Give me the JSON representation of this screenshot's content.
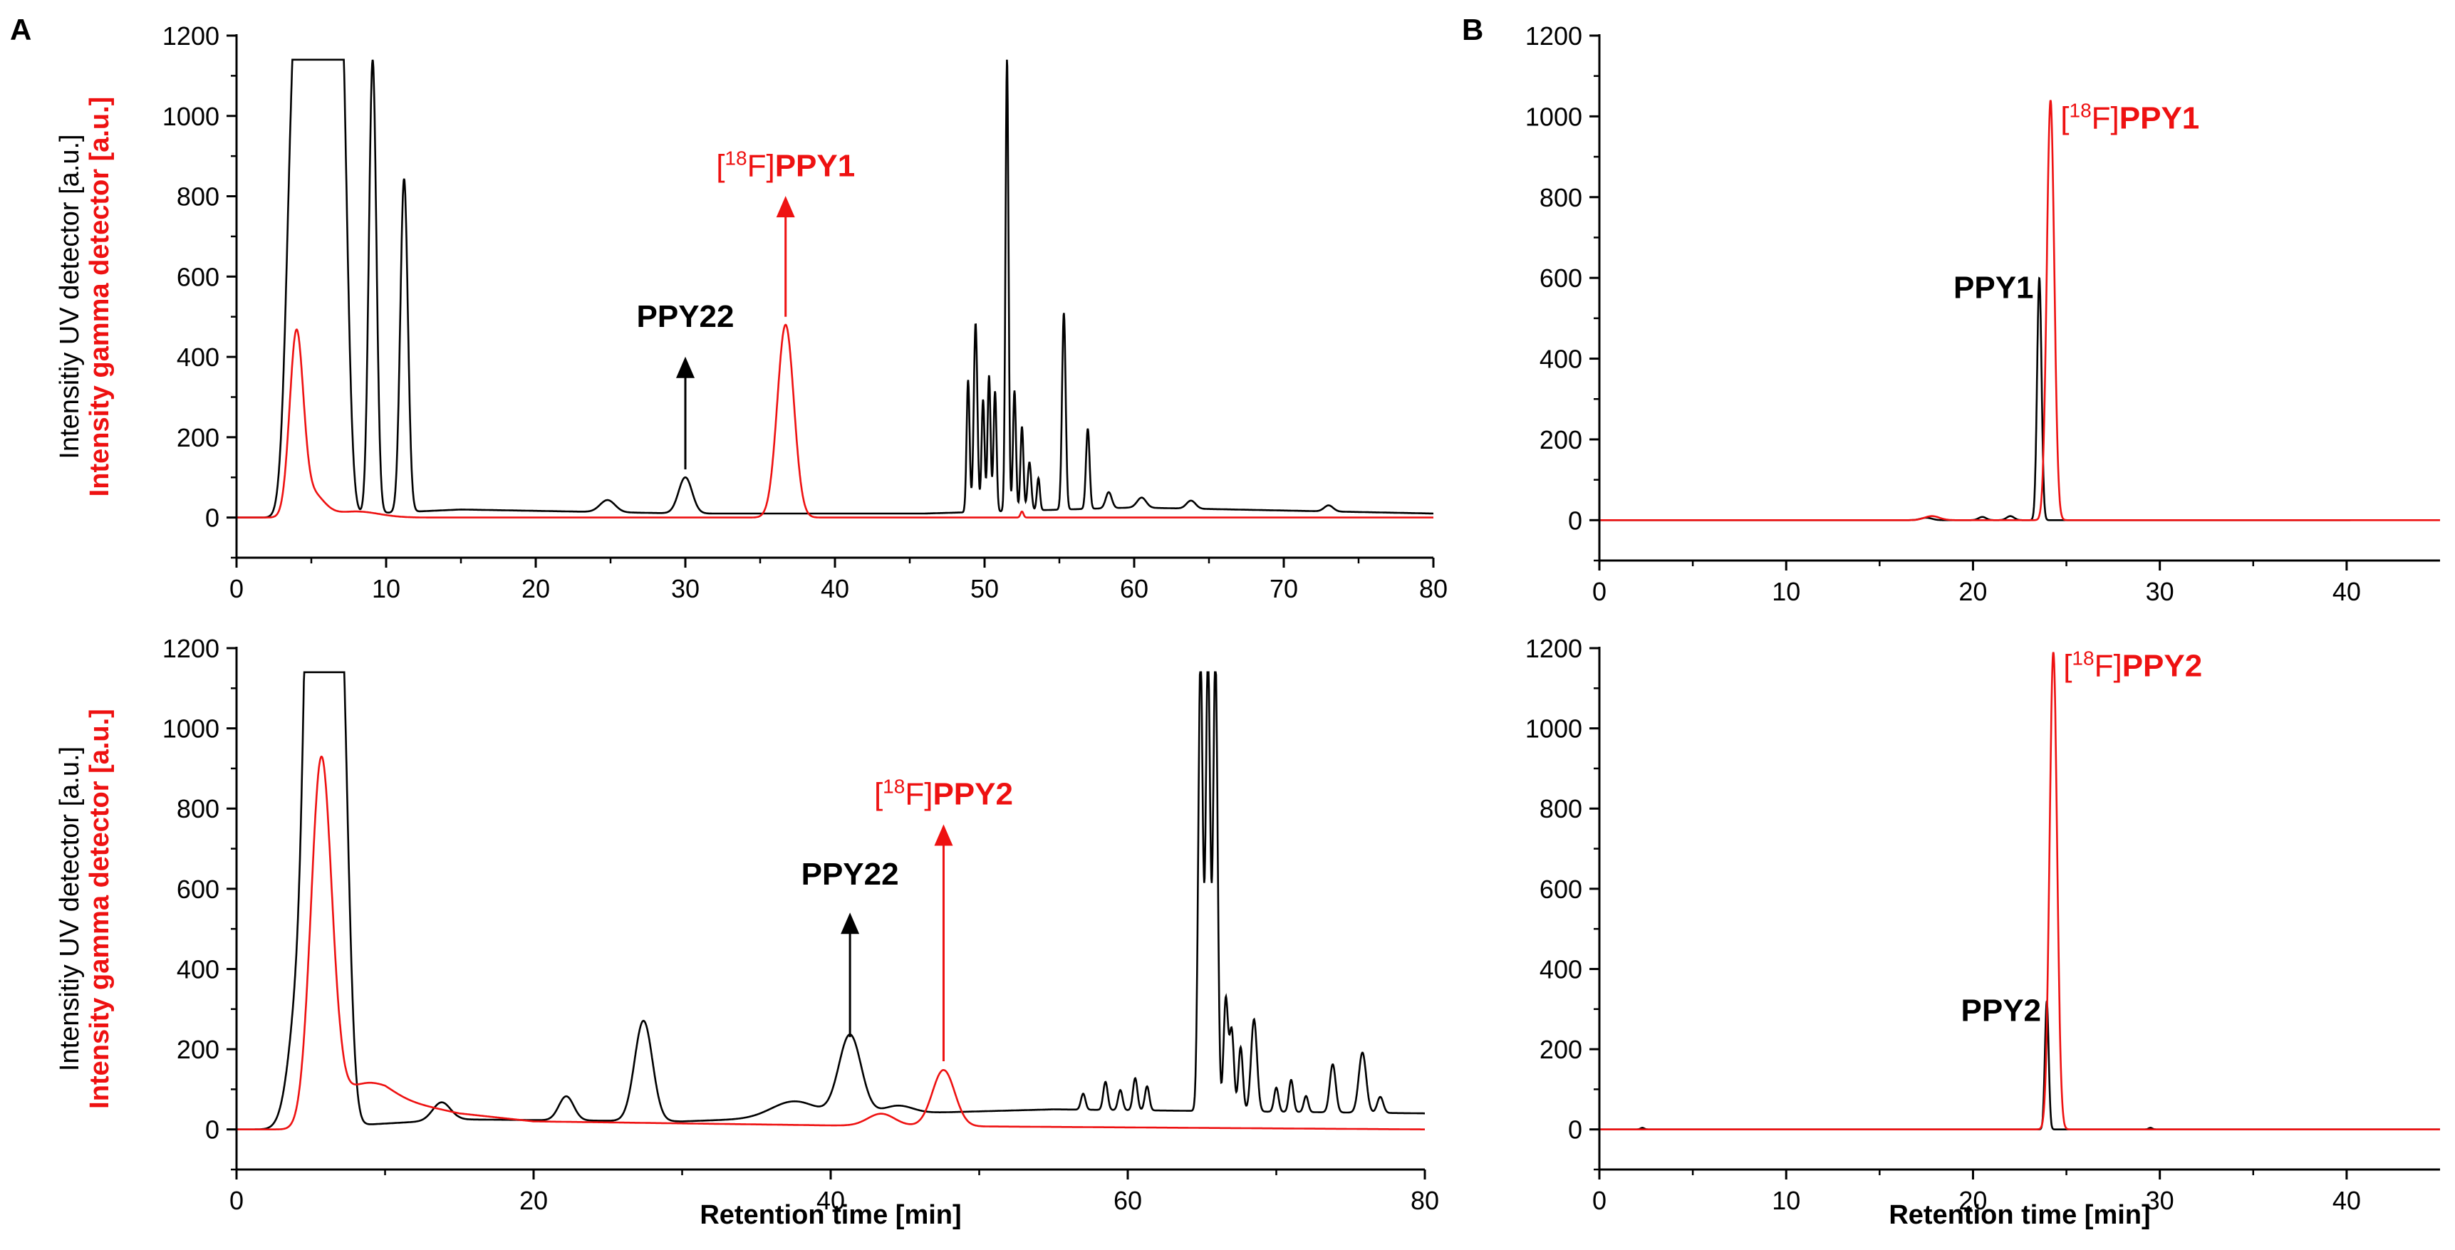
{
  "figure": {
    "panel_a": "A",
    "panel_b": "B"
  },
  "colors": {
    "uv": "#000000",
    "gamma": "#ee1111"
  },
  "chart_data": [
    {
      "id": "A1",
      "type": "line",
      "xlim": [
        0,
        80
      ],
      "ylim": [
        -100,
        1200
      ],
      "xticks": [
        0,
        10,
        20,
        30,
        40,
        50,
        60,
        70,
        80
      ],
      "yticks": [
        0,
        200,
        400,
        600,
        800,
        1000,
        1200
      ],
      "xlabel": "",
      "ylabel_uv": "Intensitiy UV detector [a.u.]",
      "ylabel_gamma": "Intensity gamma  detector [a.u.]",
      "series": [
        {
          "name": "UV detector",
          "color": "#000000",
          "baseline": [
            [
              0,
              0
            ],
            [
              3,
              0
            ],
            [
              15,
              20
            ],
            [
              30,
              10
            ],
            [
              46,
              10
            ],
            [
              60,
              25
            ],
            [
              80,
              10
            ]
          ],
          "peaks": [
            [
              3.9,
              1140,
              0.5
            ],
            [
              4.7,
              1140,
              0.4
            ],
            [
              5.5,
              1140,
              0.35
            ],
            [
              6.3,
              1140,
              0.4
            ],
            [
              7,
              1140,
              0.4
            ],
            [
              9.1,
              1130,
              0.25
            ],
            [
              11.2,
              830,
              0.25
            ],
            [
              24.8,
              30,
              0.5
            ],
            [
              30,
              90,
              0.45
            ],
            [
              48.9,
              330,
              0.1
            ],
            [
              49.4,
              470,
              0.12
            ],
            [
              49.9,
              280,
              0.1
            ],
            [
              50.3,
              340,
              0.1
            ],
            [
              50.7,
              300,
              0.1
            ],
            [
              51.5,
              1130,
              0.1
            ],
            [
              52,
              300,
              0.1
            ],
            [
              52.5,
              210,
              0.1
            ],
            [
              53,
              120,
              0.12
            ],
            [
              53.6,
              80,
              0.1
            ],
            [
              55.3,
              490,
              0.12
            ],
            [
              56.9,
              200,
              0.12
            ],
            [
              58.3,
              40,
              0.2
            ],
            [
              60.5,
              25,
              0.3
            ],
            [
              63.8,
              20,
              0.3
            ],
            [
              73,
              15,
              0.3
            ]
          ]
        },
        {
          "name": "gamma detector",
          "color": "#ee1111",
          "baseline": [
            [
              0,
              0
            ],
            [
              80,
              0
            ]
          ],
          "peaks": [
            [
              4,
              440,
              0.45
            ],
            [
              5,
              60,
              0.8
            ],
            [
              8,
              15,
              1.5
            ],
            [
              36.7,
              480,
              0.55
            ],
            [
              52.5,
              15,
              0.1
            ]
          ]
        }
      ],
      "annotations": [
        {
          "label": "PPY22",
          "color": "#000000",
          "x": 30,
          "arrow_from": 120,
          "arrow_to": 390,
          "text_at": 475
        },
        {
          "label_pre": "[",
          "label_sup": "18",
          "label_mid": "F]",
          "label_bold": "PPY1",
          "color": "#ee1111",
          "x": 36.7,
          "arrow_from": 500,
          "arrow_to": 790,
          "text_at": 850
        }
      ]
    },
    {
      "id": "A2",
      "type": "line",
      "xlim": [
        0,
        80
      ],
      "ylim": [
        -100,
        1200
      ],
      "xticks": [
        0,
        20,
        40,
        60,
        80
      ],
      "yticks": [
        0,
        200,
        400,
        600,
        800,
        1000,
        1200
      ],
      "xlabel": "Retention time [min]",
      "ylabel_uv": "Intensitiy UV detector [a.u.]",
      "ylabel_gamma": "Intensity gamma  detector [a.u.]",
      "series": [
        {
          "name": "UV detector",
          "color": "#000000",
          "baseline": [
            [
              0,
              0
            ],
            [
              3,
              0
            ],
            [
              15,
              25
            ],
            [
              30,
              20
            ],
            [
              45,
              40
            ],
            [
              55,
              50
            ],
            [
              80,
              40
            ]
          ],
          "peaks": [
            [
              4.6,
              480,
              0.8
            ],
            [
              5,
              1140,
              0.4
            ],
            [
              6,
              1140,
              0.6
            ],
            [
              7,
              1140,
              0.5
            ],
            [
              13.8,
              45,
              0.6
            ],
            [
              22.2,
              60,
              0.5
            ],
            [
              27.4,
              250,
              0.6
            ],
            [
              37.5,
              40,
              1.5
            ],
            [
              41.3,
              200,
              0.75
            ],
            [
              44.5,
              20,
              1
            ],
            [
              57,
              40,
              0.15
            ],
            [
              58.5,
              70,
              0.15
            ],
            [
              59.5,
              50,
              0.15
            ],
            [
              60.5,
              80,
              0.15
            ],
            [
              61.3,
              60,
              0.15
            ],
            [
              64.9,
              1140,
              0.15
            ],
            [
              65.4,
              1140,
              0.15
            ],
            [
              65.9,
              1140,
              0.15
            ],
            [
              66.6,
              280,
              0.15
            ],
            [
              67,
              200,
              0.15
            ],
            [
              67.6,
              160,
              0.15
            ],
            [
              68.5,
              230,
              0.2
            ],
            [
              70,
              60,
              0.15
            ],
            [
              71,
              80,
              0.15
            ],
            [
              72,
              40,
              0.15
            ],
            [
              73.8,
              120,
              0.2
            ],
            [
              75.8,
              150,
              0.25
            ],
            [
              77,
              40,
              0.2
            ]
          ]
        },
        {
          "name": "gamma detector",
          "color": "#ee1111",
          "baseline": [
            [
              0,
              0
            ],
            [
              5,
              0
            ],
            [
              7,
              70
            ],
            [
              10,
              80
            ],
            [
              15,
              40
            ],
            [
              20,
              20
            ],
            [
              40,
              10
            ],
            [
              80,
              0
            ]
          ],
          "peaks": [
            [
              5.7,
              900,
              0.7
            ],
            [
              8.8,
              40,
              1.5
            ],
            [
              43.4,
              30,
              0.9
            ],
            [
              47.6,
              140,
              0.75
            ]
          ]
        }
      ],
      "annotations": [
        {
          "label": "PPY22",
          "color": "#000000",
          "x": 41.3,
          "arrow_from": 230,
          "arrow_to": 530,
          "text_at": 610
        },
        {
          "label_pre": "[",
          "label_sup": "18",
          "label_mid": "F]",
          "label_bold": "PPY2",
          "color": "#ee1111",
          "x": 47.6,
          "arrow_from": 170,
          "arrow_to": 750,
          "text_at": 810
        }
      ]
    },
    {
      "id": "B1",
      "type": "line",
      "xlim": [
        0,
        45
      ],
      "ylim": [
        -100,
        1200
      ],
      "xticks": [
        0,
        10,
        20,
        30,
        40
      ],
      "yticks": [
        0,
        200,
        400,
        600,
        800,
        1000,
        1200
      ],
      "xlabel": "",
      "series": [
        {
          "name": "UV detector",
          "color": "#000000",
          "end": 40.2,
          "baseline": [
            [
              0,
              0
            ],
            [
              40.2,
              0
            ]
          ],
          "peaks": [
            [
              23.55,
              600,
              0.12
            ],
            [
              22,
              10,
              0.2
            ],
            [
              20.5,
              8,
              0.2
            ],
            [
              17.5,
              6,
              0.3
            ]
          ]
        },
        {
          "name": "gamma detector",
          "color": "#ee1111",
          "baseline": [
            [
              0,
              0
            ],
            [
              45,
              0
            ]
          ],
          "peaks": [
            [
              24.15,
              1040,
              0.2
            ],
            [
              17.8,
              10,
              0.4
            ]
          ]
        }
      ],
      "annotations": [
        {
          "label": "PPY1",
          "color": "#000000",
          "x": 23.55,
          "text_at": 550,
          "text_align": "end",
          "text_dx": -8
        },
        {
          "label_pre": "[",
          "label_sup": "18",
          "label_mid": "F]",
          "label_bold": "PPY1",
          "color": "#ee1111",
          "x": 24.15,
          "text_at": 970,
          "text_align": "start",
          "text_dx": 14
        }
      ]
    },
    {
      "id": "B2",
      "type": "line",
      "xlim": [
        0,
        45
      ],
      "ylim": [
        -100,
        1200
      ],
      "xticks": [
        0,
        10,
        20,
        30,
        40
      ],
      "yticks": [
        0,
        200,
        400,
        600,
        800,
        1000,
        1200
      ],
      "xlabel": "Retention time [min]",
      "series": [
        {
          "name": "UV detector",
          "color": "#000000",
          "baseline": [
            [
              0,
              0
            ],
            [
              45,
              0
            ]
          ],
          "peaks": [
            [
              23.95,
              320,
              0.1
            ],
            [
              2.3,
              4,
              0.1
            ],
            [
              29.5,
              4,
              0.1
            ]
          ]
        },
        {
          "name": "gamma detector",
          "color": "#ee1111",
          "baseline": [
            [
              0,
              0
            ],
            [
              45,
              0
            ]
          ],
          "peaks": [
            [
              24.3,
              1190,
              0.2
            ]
          ]
        }
      ],
      "annotations": [
        {
          "label": "PPY2",
          "color": "#000000",
          "x": 23.95,
          "text_at": 270,
          "text_align": "end",
          "text_dx": -8
        },
        {
          "label_pre": "[",
          "label_sup": "18",
          "label_mid": "F]",
          "label_bold": "PPY2",
          "color": "#ee1111",
          "x": 24.3,
          "text_at": 1130,
          "text_align": "start",
          "text_dx": 14
        }
      ]
    }
  ]
}
